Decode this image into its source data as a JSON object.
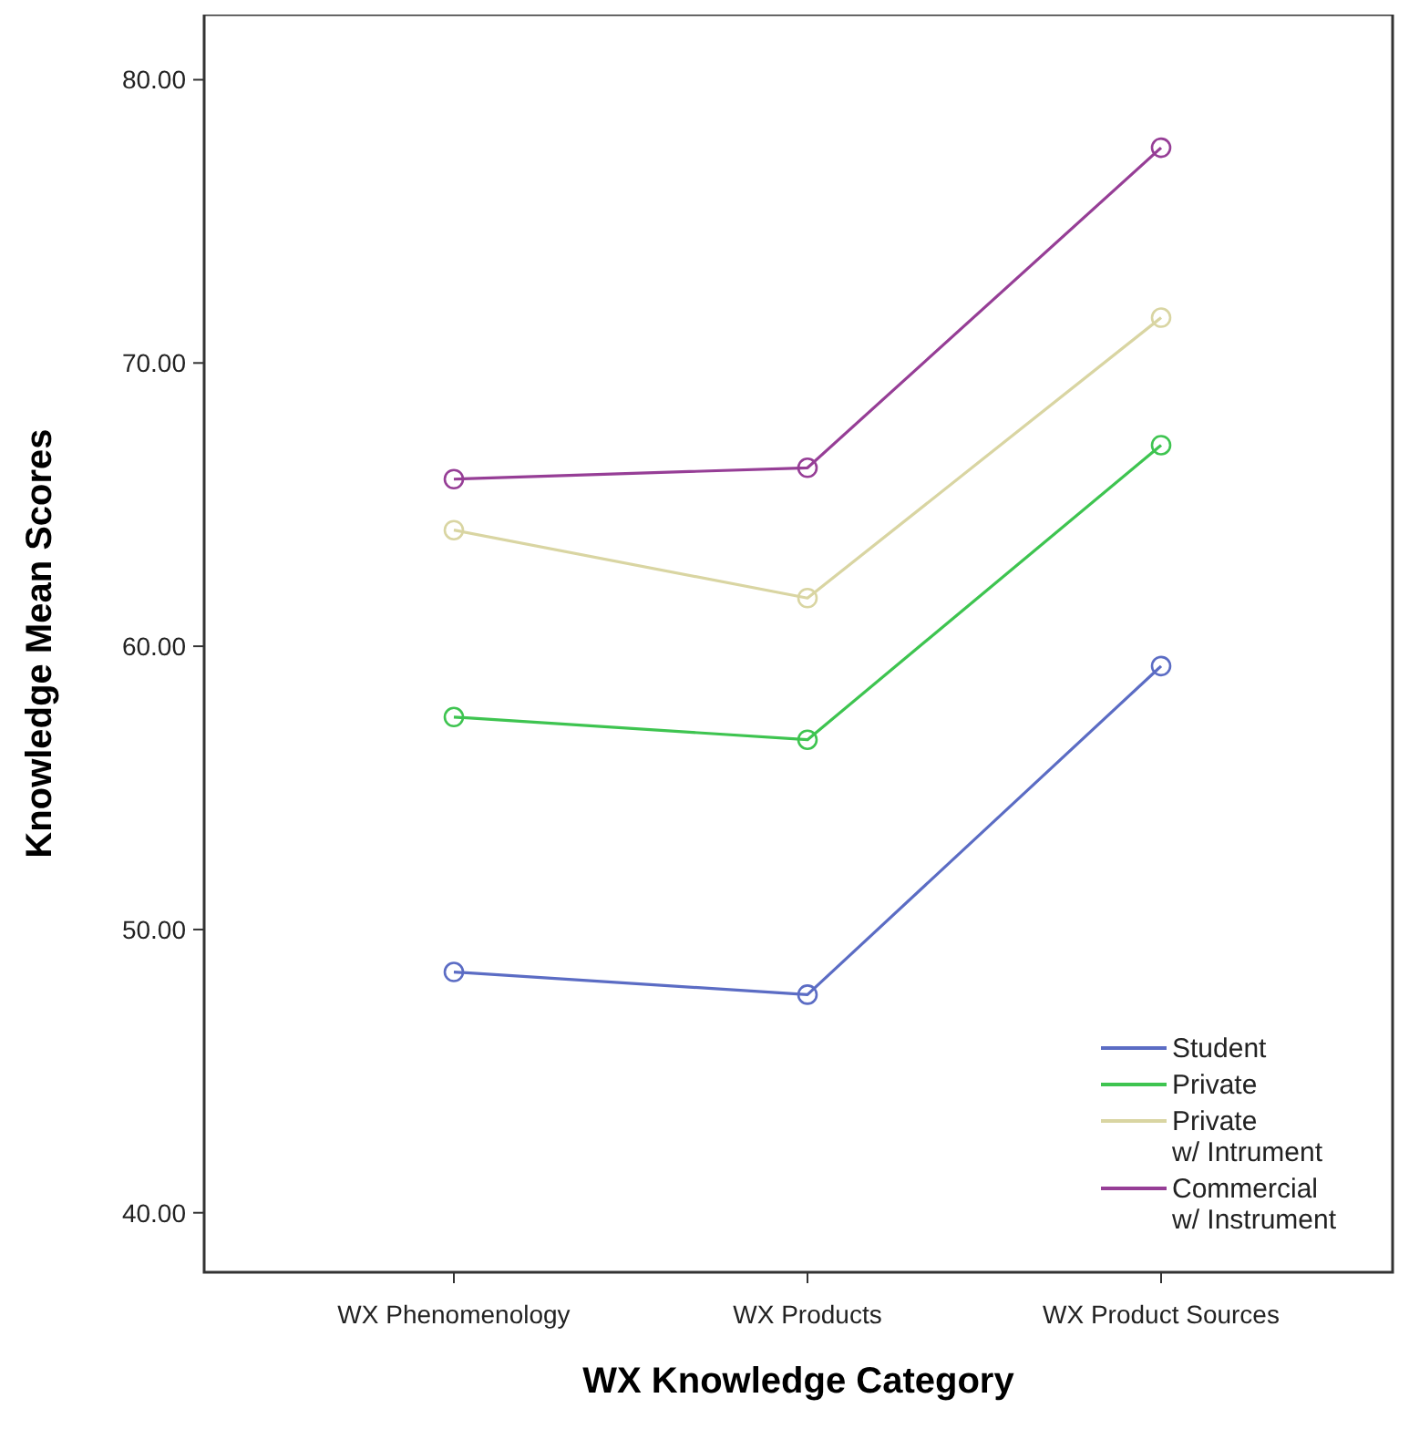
{
  "chart_data": {
    "type": "line",
    "xlabel": "WX Knowledge Category",
    "ylabel": "Knowledge Mean Scores",
    "categories": [
      "WX Phenomenology",
      "WX Products",
      "WX Product Sources"
    ],
    "series": [
      {
        "name": "Student",
        "color": "#5b6cc4",
        "values": [
          48.5,
          47.7,
          59.3
        ]
      },
      {
        "name": "Private",
        "color": "#3ec450",
        "values": [
          57.5,
          56.7,
          67.1
        ]
      },
      {
        "name": "Private\nw/ Intrument",
        "color": "#d9d5a2",
        "values": [
          64.1,
          61.7,
          71.6
        ]
      },
      {
        "name": "Commercial\nw/ Instrument",
        "color": "#963e96",
        "values": [
          65.9,
          66.3,
          77.6
        ]
      }
    ],
    "ylim": [
      37.9,
      82.3
    ],
    "yticks": [
      {
        "value": 40,
        "label": "40.00"
      },
      {
        "value": 50,
        "label": "50.00"
      },
      {
        "value": 60,
        "label": "60.00"
      },
      {
        "value": 70,
        "label": "70.00"
      },
      {
        "value": 80,
        "label": "80.00"
      }
    ],
    "marker": "circle",
    "legend": "bottom right",
    "grid": false
  }
}
